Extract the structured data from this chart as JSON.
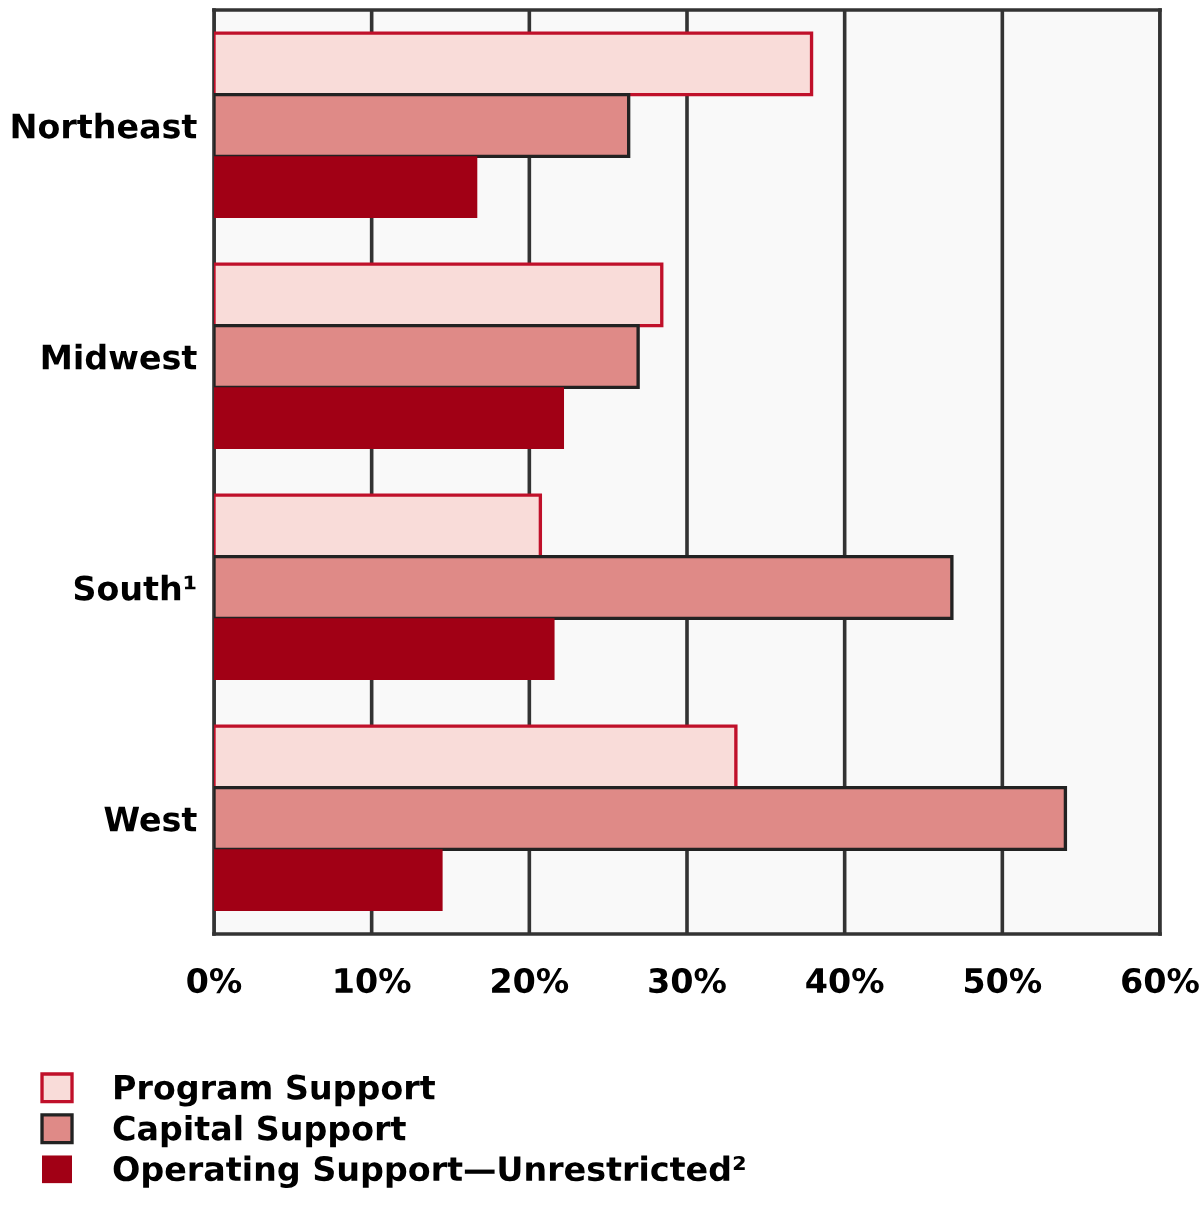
{
  "chart_data": {
    "type": "bar",
    "orientation": "horizontal",
    "categories": [
      "Northeast",
      "Midwest",
      "South¹",
      "West"
    ],
    "series": [
      {
        "name": "Program Support",
        "color": "#f9dcd9",
        "values": [
          37.9,
          28.4,
          20.7,
          33.1
        ]
      },
      {
        "name": "Capital Support",
        "color": "#df8a87",
        "values": [
          26.3,
          26.9,
          46.8,
          54.0
        ]
      },
      {
        "name": "Operating Support—Unrestricted²",
        "color": "#a10015",
        "values": [
          16.7,
          22.2,
          21.6,
          14.5
        ]
      }
    ],
    "xlim": [
      0,
      60
    ],
    "xticks": [
      {
        "value": 0,
        "label": "0%"
      },
      {
        "value": 10,
        "label": "10%"
      },
      {
        "value": 20,
        "label": "20%"
      },
      {
        "value": 30,
        "label": "30%"
      },
      {
        "value": 40,
        "label": "40%"
      },
      {
        "value": 50,
        "label": "50%"
      },
      {
        "value": 60,
        "label": "60%"
      }
    ],
    "grid": "x",
    "legend": "bottom left"
  }
}
